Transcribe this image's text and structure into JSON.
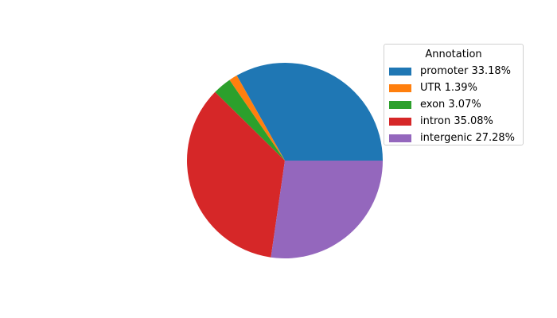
{
  "chart_data": {
    "type": "pie",
    "title": "",
    "start_angle_deg": 0,
    "direction": "counterclockwise",
    "legend": {
      "title": "Annotation",
      "placement": "upper-right"
    },
    "slices": [
      {
        "name": "promoter",
        "label": "promoter 33.18%",
        "value": 33.18,
        "color": "#1f77b4"
      },
      {
        "name": "UTR",
        "label": "UTR 1.39%",
        "value": 1.39,
        "color": "#ff7f0e"
      },
      {
        "name": "exon",
        "label": "exon 3.07%",
        "value": 3.07,
        "color": "#2ca02c"
      },
      {
        "name": "intron",
        "label": "intron 35.08%",
        "value": 35.08,
        "color": "#d62728"
      },
      {
        "name": "intergenic",
        "label": "intergenic 27.28%",
        "value": 27.28,
        "color": "#9467bd"
      }
    ]
  }
}
